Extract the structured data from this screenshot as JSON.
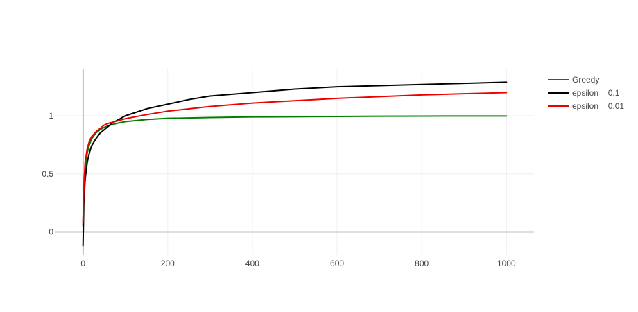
{
  "chart_data": {
    "type": "line",
    "title": "",
    "xlabel": "",
    "ylabel": "",
    "xlim": [
      -65,
      1065
    ],
    "ylim": [
      -0.2,
      1.4
    ],
    "xticks": [
      0,
      200,
      400,
      600,
      800,
      1000
    ],
    "xtick_labels": [
      "0",
      "200",
      "400",
      "600",
      "800",
      "1000"
    ],
    "yticks": [
      0,
      0.5,
      1
    ],
    "ytick_labels": [
      "0",
      "0.5",
      "1"
    ],
    "grid": true,
    "legend_position": "top-right",
    "series": [
      {
        "name": "Greedy",
        "color": "#008000",
        "x": [
          0,
          2,
          5,
          10,
          15,
          20,
          30,
          40,
          50,
          60,
          70,
          80,
          100,
          150,
          200,
          300,
          400,
          500,
          600,
          700,
          800,
          900,
          1000
        ],
        "y": [
          0.05,
          0.35,
          0.55,
          0.68,
          0.75,
          0.8,
          0.85,
          0.88,
          0.9,
          0.915,
          0.925,
          0.935,
          0.95,
          0.968,
          0.978,
          0.985,
          0.99,
          0.992,
          0.994,
          0.996,
          0.997,
          0.998,
          0.998
        ]
      },
      {
        "name": "epsilon = 0.1",
        "color": "#000000",
        "x": [
          0,
          2,
          5,
          10,
          15,
          20,
          30,
          40,
          50,
          60,
          70,
          80,
          100,
          150,
          200,
          250,
          300,
          400,
          500,
          600,
          700,
          800,
          900,
          1000
        ],
        "y": [
          -0.12,
          0.25,
          0.45,
          0.6,
          0.68,
          0.74,
          0.8,
          0.85,
          0.88,
          0.91,
          0.94,
          0.96,
          1.0,
          1.06,
          1.1,
          1.14,
          1.17,
          1.2,
          1.23,
          1.25,
          1.26,
          1.27,
          1.28,
          1.29
        ]
      },
      {
        "name": "epsilon = 0.01",
        "color": "#ee0000",
        "x": [
          0,
          2,
          5,
          10,
          15,
          20,
          30,
          40,
          50,
          60,
          80,
          100,
          150,
          200,
          300,
          400,
          500,
          600,
          700,
          800,
          900,
          1000
        ],
        "y": [
          0.08,
          0.4,
          0.6,
          0.72,
          0.78,
          0.82,
          0.86,
          0.89,
          0.92,
          0.935,
          0.955,
          0.975,
          1.01,
          1.04,
          1.08,
          1.11,
          1.13,
          1.15,
          1.165,
          1.18,
          1.19,
          1.2
        ]
      }
    ]
  }
}
